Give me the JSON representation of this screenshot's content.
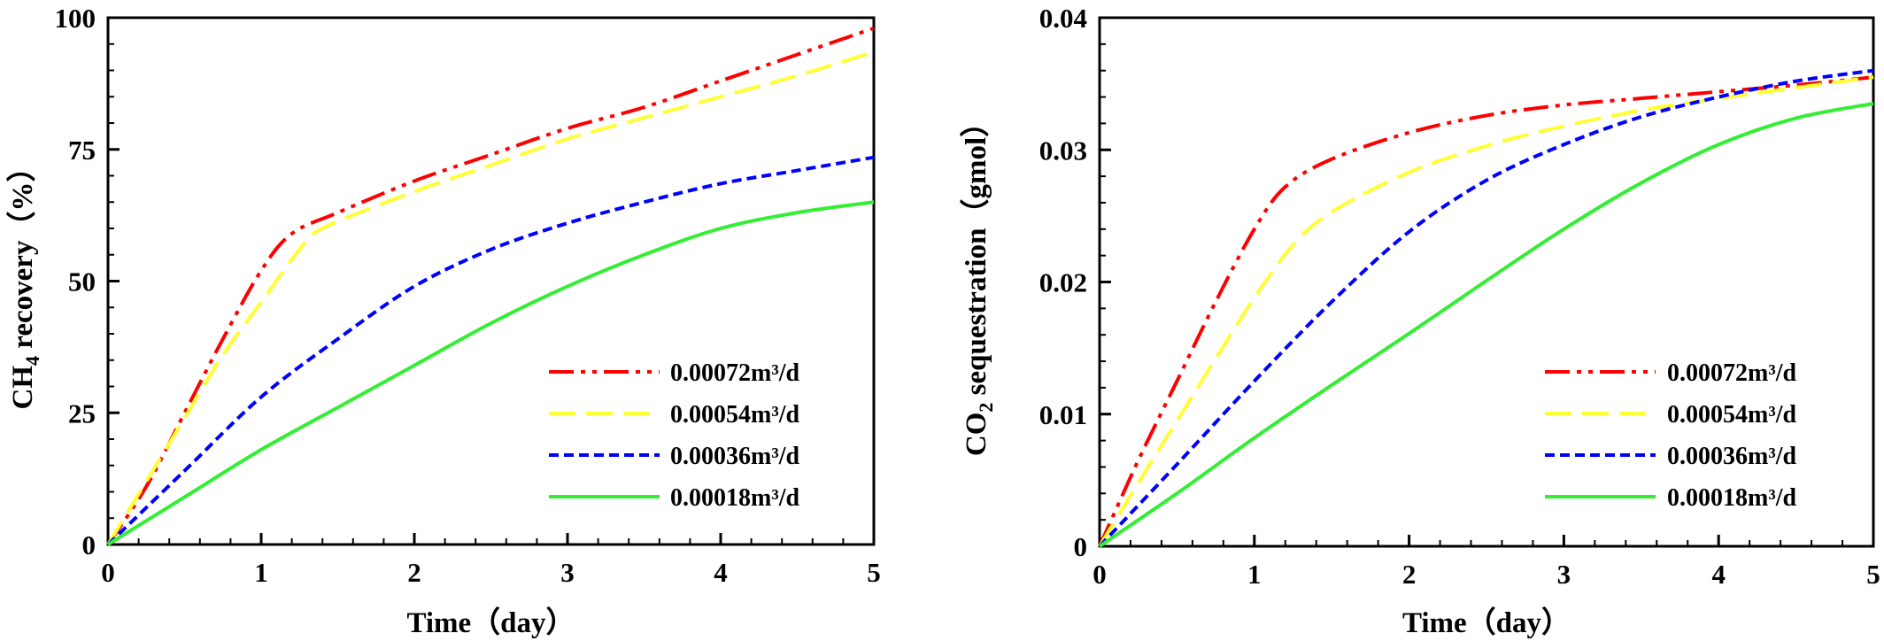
{
  "chart_data": [
    {
      "type": "line",
      "xlabel": "Time（day）",
      "ylabel_main": "CH",
      "ylabel_sub": "4",
      "ylabel_rest": " recovery（%）",
      "xlim": [
        0,
        5
      ],
      "ylim": [
        0,
        100
      ],
      "xticks": [
        "0",
        "1",
        "2",
        "3",
        "4",
        "5"
      ],
      "yticks": [
        "0",
        "25",
        "50",
        "75",
        "100"
      ],
      "grid": false,
      "legend_position": "lower-right",
      "series": [
        {
          "name": "0.00072m³/d",
          "color": "#ff0000",
          "style": "dash-dot-dot",
          "x": [
            0,
            0.25,
            0.5,
            0.75,
            1.0,
            1.2,
            1.5,
            2.0,
            2.5,
            3.0,
            3.5,
            4.0,
            4.5,
            5.0
          ],
          "y": [
            0,
            11,
            25,
            39,
            52,
            59,
            63,
            69,
            74,
            79,
            83,
            88,
            93,
            98
          ]
        },
        {
          "name": "0.00054m³/d",
          "color": "#ffff33",
          "style": "long-dash",
          "x": [
            0,
            0.25,
            0.5,
            0.75,
            1.0,
            1.25,
            1.4,
            2.0,
            2.5,
            3.0,
            3.5,
            4.0,
            4.5,
            5.0
          ],
          "y": [
            0,
            12,
            24,
            36,
            46,
            56,
            60,
            67,
            72,
            77,
            81,
            85,
            89,
            93.5
          ]
        },
        {
          "name": "0.00036m³/d",
          "color": "#0000ff",
          "style": "short-dash",
          "x": [
            0,
            0.5,
            1.0,
            1.5,
            2.0,
            2.5,
            3.0,
            3.5,
            4.0,
            4.5,
            5.0
          ],
          "y": [
            0,
            14,
            28,
            39,
            49,
            56,
            61,
            65,
            68.5,
            71,
            73.5
          ]
        },
        {
          "name": "0.00018m³/d",
          "color": "#33ee33",
          "style": "solid",
          "x": [
            0,
            0.5,
            1.0,
            1.5,
            2.0,
            2.5,
            3.0,
            3.5,
            4.0,
            4.5,
            5.0
          ],
          "y": [
            0,
            9,
            18,
            26,
            34,
            42,
            49,
            55,
            60,
            63,
            65
          ]
        }
      ]
    },
    {
      "type": "line",
      "xlabel": "Time（day）",
      "ylabel_main": "CO",
      "ylabel_sub": "2",
      "ylabel_rest": " sequestration（gmol）",
      "xlim": [
        0,
        5
      ],
      "ylim": [
        0,
        0.04
      ],
      "xticks": [
        "0",
        "1",
        "2",
        "3",
        "4",
        "5"
      ],
      "yticks": [
        "0",
        "0.01",
        "0.02",
        "0.03",
        "0.04"
      ],
      "grid": false,
      "legend_position": "lower-right",
      "series": [
        {
          "name": "0.00072m³/d",
          "color": "#ff0000",
          "style": "dash-dot-dot",
          "x": [
            0,
            0.25,
            0.5,
            0.75,
            1.0,
            1.2,
            1.5,
            2.0,
            2.5,
            3.0,
            3.5,
            4.0,
            4.5,
            5.0
          ],
          "y": [
            0,
            0.0065,
            0.0125,
            0.0185,
            0.024,
            0.0272,
            0.0293,
            0.0313,
            0.0326,
            0.0334,
            0.0339,
            0.0344,
            0.0349,
            0.0355
          ]
        },
        {
          "name": "0.00054m³/d",
          "color": "#ffff33",
          "style": "long-dash",
          "x": [
            0,
            0.25,
            0.5,
            0.75,
            1.0,
            1.25,
            1.5,
            2.0,
            2.5,
            3.0,
            3.5,
            4.0,
            4.5,
            5.0
          ],
          "y": [
            0,
            0.0048,
            0.0095,
            0.0142,
            0.0188,
            0.0228,
            0.0253,
            0.0283,
            0.0303,
            0.0318,
            0.033,
            0.0339,
            0.0347,
            0.0355
          ]
        },
        {
          "name": "0.00036m³/d",
          "color": "#0000ff",
          "style": "short-dash",
          "x": [
            0,
            0.5,
            1.0,
            1.5,
            2.0,
            2.5,
            3.0,
            3.5,
            4.0,
            4.5,
            5.0
          ],
          "y": [
            0,
            0.0062,
            0.0125,
            0.0185,
            0.0238,
            0.0277,
            0.0304,
            0.0325,
            0.034,
            0.0352,
            0.036
          ]
        },
        {
          "name": "0.00018m³/d",
          "color": "#33ee33",
          "style": "solid",
          "x": [
            0,
            0.5,
            1.0,
            1.5,
            2.0,
            2.5,
            3.0,
            3.5,
            4.0,
            4.5,
            5.0
          ],
          "y": [
            0,
            0.004,
            0.0082,
            0.0122,
            0.0161,
            0.0201,
            0.024,
            0.0275,
            0.0304,
            0.0324,
            0.0335
          ]
        }
      ]
    }
  ]
}
